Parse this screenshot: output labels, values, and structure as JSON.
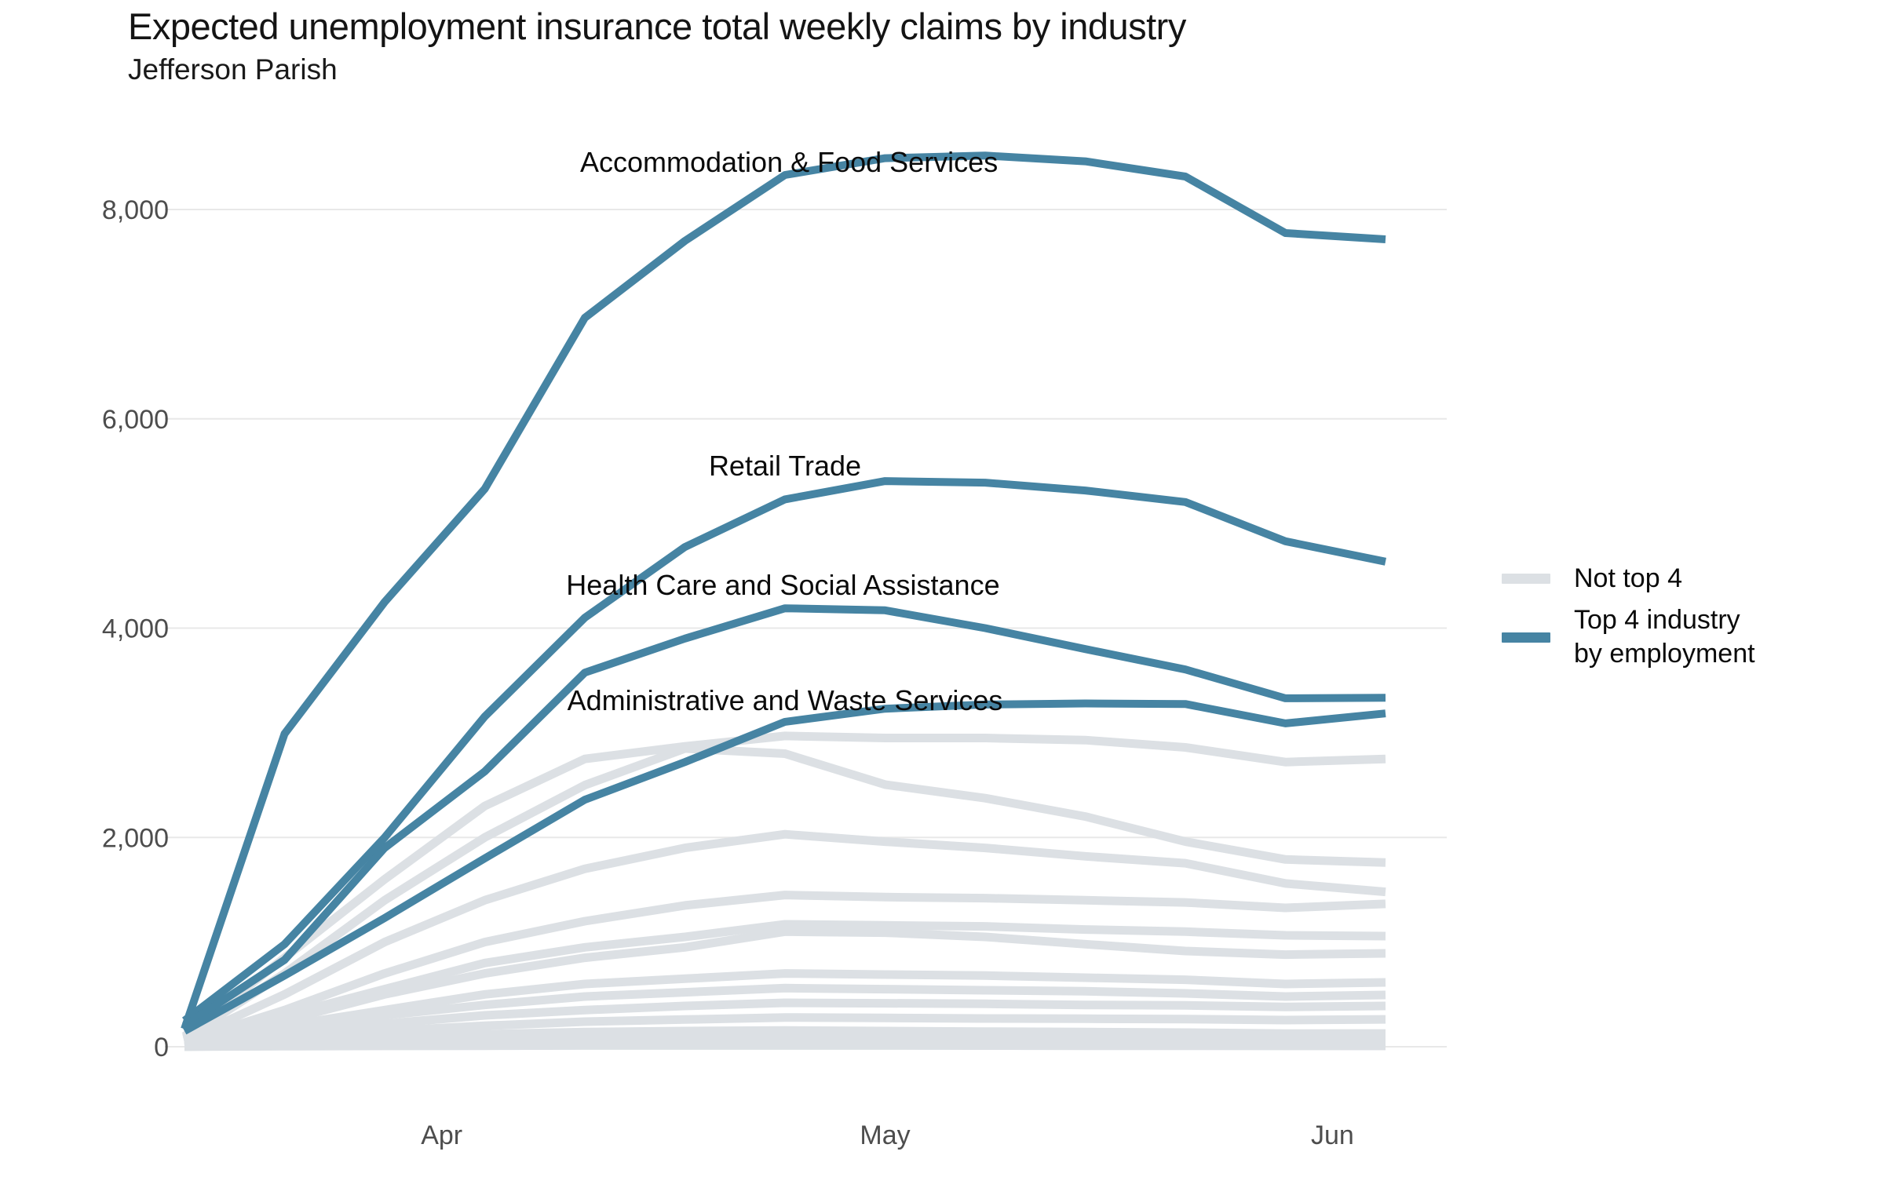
{
  "header": {
    "title": "Expected unemployment insurance total weekly claims by industry",
    "subtitle": "Jefferson Parish"
  },
  "legend": {
    "items": [
      {
        "label": "Not top 4",
        "label_lines": [
          "Not top 4"
        ],
        "color": "#dce0e4"
      },
      {
        "label": "Top 4 industry by employment",
        "label_lines": [
          "Top 4 industry",
          "by employment"
        ],
        "color": "#4684a3"
      }
    ]
  },
  "chart_data": {
    "type": "line",
    "title": "Expected unemployment insurance total weekly claims by industry",
    "subtitle": "Jefferson Parish",
    "x_axis": {
      "unit": "week",
      "week_indices": [
        0,
        1,
        2,
        3,
        4,
        5,
        6,
        7,
        8,
        9,
        10,
        11,
        12
      ],
      "tick_labels": [
        "Apr",
        "May",
        "Jun"
      ],
      "tick_week_positions": [
        2.57,
        7.0,
        11.47
      ]
    },
    "y_axis": {
      "tick_values": [
        0,
        2000,
        4000,
        6000,
        8000
      ],
      "tick_labels": [
        "0",
        "2,000",
        "4,000",
        "6,000",
        "8,000"
      ],
      "range": [
        0,
        8800
      ],
      "grid": "horizontal"
    },
    "legend_position": "right",
    "colors": {
      "top4": "#4684a3",
      "not_top_4": "#dce0e4",
      "grid": "#e8e8e8",
      "axis_text": "#4d4d4d",
      "annotation_text": "#0a0a0a",
      "title_text": "#141414"
    },
    "highlight_series": [
      {
        "name": "Accommodation & Food Services",
        "group": "top4",
        "values": [
          170,
          2990,
          4250,
          5330,
          6965,
          7700,
          8330,
          8490,
          8515,
          8460,
          8315,
          7775,
          7715
        ]
      },
      {
        "name": "Retail Trade",
        "group": "top4",
        "values": [
          250,
          980,
          2000,
          3155,
          4100,
          4775,
          5230,
          5405,
          5390,
          5315,
          5205,
          4830,
          4635
        ]
      },
      {
        "name": "Health Care and Social Assistance",
        "group": "top4",
        "values": [
          200,
          830,
          1900,
          2630,
          3575,
          3900,
          4190,
          4170,
          4000,
          3800,
          3605,
          3330,
          3335
        ]
      },
      {
        "name": "Administrative and Waste Services",
        "group": "top4",
        "values": [
          150,
          680,
          1230,
          1800,
          2360,
          2720,
          3105,
          3230,
          3270,
          3280,
          3275,
          3090,
          3185
        ]
      }
    ],
    "background_series": [
      {
        "group": "not_top_4",
        "values": [
          100,
          850,
          1600,
          2300,
          2750,
          2870,
          2970,
          2950,
          2950,
          2930,
          2860,
          2720,
          2750
        ]
      },
      {
        "group": "not_top_4",
        "values": [
          80,
          700,
          1400,
          2000,
          2500,
          2850,
          2800,
          2505,
          2375,
          2200,
          1960,
          1790,
          1760
        ]
      },
      {
        "group": "not_top_4",
        "values": [
          60,
          500,
          1000,
          1400,
          1700,
          1900,
          2030,
          1960,
          1900,
          1820,
          1754,
          1560,
          1480
        ]
      },
      {
        "group": "not_top_4",
        "values": [
          50,
          350,
          700,
          1000,
          1200,
          1350,
          1450,
          1430,
          1420,
          1400,
          1379,
          1327,
          1365
        ]
      },
      {
        "group": "not_top_4",
        "values": [
          40,
          300,
          550,
          800,
          950,
          1050,
          1170,
          1160,
          1150,
          1120,
          1100,
          1065,
          1057
        ]
      },
      {
        "group": "not_top_4",
        "values": [
          40,
          250,
          500,
          700,
          850,
          950,
          1100,
          1090,
          1050,
          980,
          915,
          880,
          892
        ]
      },
      {
        "group": "not_top_4",
        "values": [
          30,
          200,
          350,
          500,
          600,
          650,
          700,
          690,
          680,
          660,
          640,
          600,
          615
        ]
      },
      {
        "group": "not_top_4",
        "values": [
          25,
          150,
          300,
          400,
          480,
          520,
          560,
          550,
          540,
          530,
          510,
          480,
          495
        ]
      },
      {
        "group": "not_top_4",
        "values": [
          20,
          120,
          220,
          300,
          350,
          390,
          420,
          415,
          410,
          400,
          395,
          380,
          390
        ]
      },
      {
        "group": "not_top_4",
        "values": [
          15,
          80,
          150,
          200,
          240,
          260,
          280,
          275,
          270,
          268,
          265,
          255,
          262
        ]
      },
      {
        "group": "not_top_4",
        "values": [
          10,
          50,
          90,
          120,
          140,
          150,
          155,
          150,
          145,
          140,
          135,
          125,
          127
        ]
      },
      {
        "group": "not_top_4",
        "values": [
          8,
          30,
          50,
          70,
          80,
          85,
          88,
          85,
          80,
          75,
          70,
          62,
          60
        ]
      },
      {
        "group": "not_top_4",
        "values": [
          5,
          20,
          30,
          40,
          45,
          48,
          50,
          48,
          45,
          40,
          35,
          32,
          30
        ]
      },
      {
        "group": "not_top_4",
        "values": [
          3,
          10,
          18,
          22,
          25,
          26,
          28,
          26,
          24,
          20,
          18,
          16,
          15
        ]
      },
      {
        "group": "not_top_4",
        "values": [
          2,
          8,
          12,
          15,
          18,
          20,
          20,
          19,
          18,
          16,
          14,
          12,
          10
        ]
      },
      {
        "group": "not_top_4",
        "values": [
          1,
          5,
          8,
          10,
          12,
          12,
          12,
          12,
          11,
          10,
          9,
          8,
          8
        ]
      }
    ],
    "annotations": [
      {
        "text": "Accommodation & Food Services",
        "x_week": 6.04,
        "y_value": 8360
      },
      {
        "text": "Retail Trade",
        "x_week": 6.0,
        "y_value": 5460
      },
      {
        "text": "Health Care and Social Assistance",
        "x_week": 5.98,
        "y_value": 4320
      },
      {
        "text": "Administrative and Waste Services",
        "x_week": 6.0,
        "y_value": 3215
      }
    ]
  }
}
